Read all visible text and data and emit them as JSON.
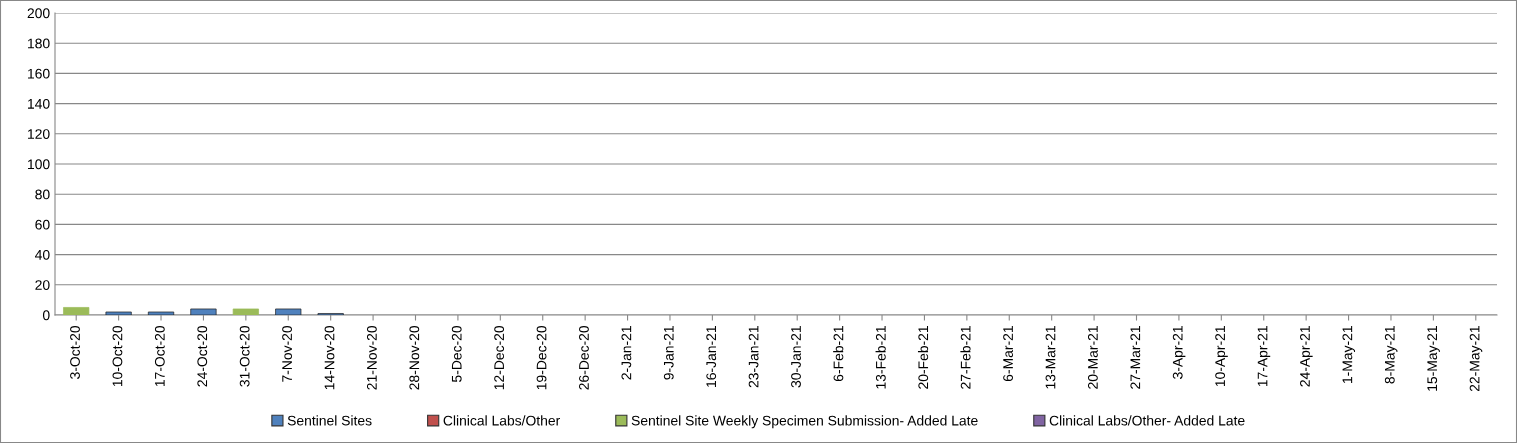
{
  "chart_data": {
    "type": "bar",
    "categories": [
      "3-Oct-20",
      "10-Oct-20",
      "17-Oct-20",
      "24-Oct-20",
      "31-Oct-20",
      "7-Nov-20",
      "14-Nov-20",
      "21-Nov-20",
      "28-Nov-20",
      "5-Dec-20",
      "12-Dec-20",
      "19-Dec-20",
      "26-Dec-20",
      "2-Jan-21",
      "9-Jan-21",
      "16-Jan-21",
      "23-Jan-21",
      "30-Jan-21",
      "6-Feb-21",
      "13-Feb-21",
      "20-Feb-21",
      "27-Feb-21",
      "6-Mar-21",
      "13-Mar-21",
      "20-Mar-21",
      "27-Mar-21",
      "3-Apr-21",
      "10-Apr-21",
      "17-Apr-21",
      "24-Apr-21",
      "1-May-21",
      "8-May-21",
      "15-May-21",
      "22-May-21"
    ],
    "series": [
      {
        "name": "Sentinel Sites",
        "color": "#4f81bd",
        "values": [
          null,
          2,
          2,
          4,
          null,
          4,
          1,
          null,
          null,
          null,
          null,
          null,
          null,
          null,
          null,
          null,
          null,
          null,
          null,
          null,
          null,
          null,
          null,
          null,
          null,
          null,
          null,
          null,
          null,
          null,
          null,
          null,
          null,
          null
        ]
      },
      {
        "name": "Clinical Labs/Other",
        "color": "#c0504d",
        "values": [
          null,
          null,
          null,
          null,
          null,
          null,
          null,
          null,
          null,
          null,
          null,
          null,
          null,
          null,
          null,
          null,
          null,
          null,
          null,
          null,
          null,
          null,
          null,
          null,
          null,
          null,
          null,
          null,
          null,
          null,
          null,
          null,
          null,
          null
        ]
      },
      {
        "name": "Sentinel Site Weekly Specimen Submission- Added Late",
        "color": "#9bbb59",
        "values": [
          5,
          null,
          null,
          null,
          4,
          null,
          null,
          null,
          null,
          null,
          null,
          null,
          null,
          null,
          null,
          null,
          null,
          null,
          null,
          null,
          null,
          null,
          null,
          null,
          null,
          null,
          null,
          null,
          null,
          null,
          null,
          null,
          null,
          null
        ]
      },
      {
        "name": "Clinical Labs/Other- Added Late",
        "color": "#8064a2",
        "values": [
          null,
          null,
          null,
          null,
          null,
          null,
          null,
          null,
          null,
          null,
          null,
          null,
          null,
          null,
          null,
          null,
          null,
          null,
          null,
          null,
          null,
          null,
          null,
          null,
          null,
          null,
          null,
          null,
          null,
          null,
          null,
          null,
          null,
          null
        ]
      }
    ],
    "ylim": [
      0,
      200
    ],
    "yticks": [
      0,
      20,
      40,
      60,
      80,
      100,
      120,
      140,
      160,
      180,
      200
    ],
    "grid": "y",
    "legend": "bottom"
  }
}
